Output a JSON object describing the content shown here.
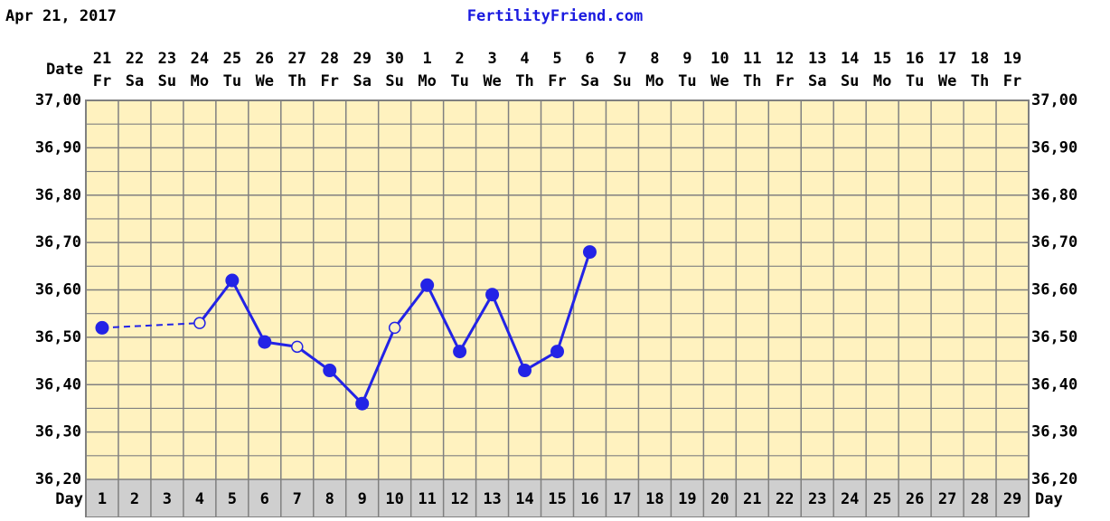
{
  "chart_data": {
    "type": "line",
    "header_date": "Apr 21, 2017",
    "site": "FertilityFriend.com",
    "date_label": "Date",
    "day_label": "Day",
    "dates": [
      "21",
      "22",
      "23",
      "24",
      "25",
      "26",
      "27",
      "28",
      "29",
      "30",
      "1",
      "2",
      "3",
      "4",
      "5",
      "6",
      "7",
      "8",
      "9",
      "10",
      "11",
      "12",
      "13",
      "14",
      "15",
      "16",
      "17",
      "18",
      "19"
    ],
    "weekdays": [
      "Fr",
      "Sa",
      "Su",
      "Mo",
      "Tu",
      "We",
      "Th",
      "Fr",
      "Sa",
      "Su",
      "Mo",
      "Tu",
      "We",
      "Th",
      "Fr",
      "Sa",
      "Su",
      "Mo",
      "Tu",
      "We",
      "Th",
      "Fr",
      "Sa",
      "Su",
      "Mo",
      "Tu",
      "We",
      "Th",
      "Fr"
    ],
    "categories": [
      1,
      2,
      3,
      4,
      5,
      6,
      7,
      8,
      9,
      10,
      11,
      12,
      13,
      14,
      15,
      16,
      17,
      18,
      19,
      20,
      21,
      22,
      23,
      24,
      25,
      26,
      27,
      28,
      29
    ],
    "series": [
      {
        "color": "#2323e6",
        "values": [
          36.52,
          null,
          null,
          36.53,
          36.62,
          36.49,
          36.48,
          36.43,
          36.36,
          36.52,
          36.61,
          36.47,
          36.59,
          36.43,
          36.47,
          36.68,
          null,
          null,
          null,
          null,
          null,
          null,
          null,
          null,
          null,
          null,
          null,
          null,
          null
        ],
        "hollow_days": [
          4,
          7,
          10
        ]
      }
    ],
    "ylim": [
      36.2,
      37.0
    ],
    "yticks": [
      {
        "value": 36.2,
        "label": "36,20"
      },
      {
        "value": 36.3,
        "label": "36,30"
      },
      {
        "value": 36.4,
        "label": "36,40"
      },
      {
        "value": 36.5,
        "label": "36,50"
      },
      {
        "value": 36.6,
        "label": "36,60"
      },
      {
        "value": 36.7,
        "label": "36,70"
      },
      {
        "value": 36.8,
        "label": "36,80"
      },
      {
        "value": 36.9,
        "label": "36,90"
      },
      {
        "value": 37.0,
        "label": "37,00"
      }
    ],
    "grid": true
  }
}
